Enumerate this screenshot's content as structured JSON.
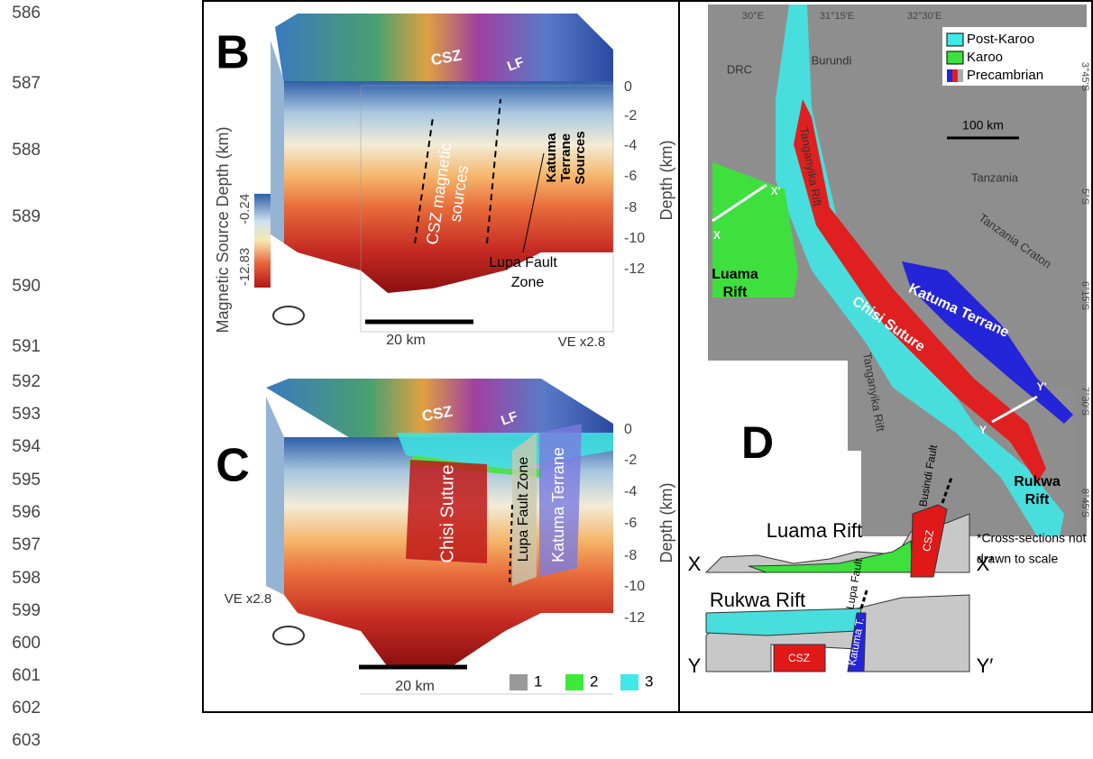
{
  "line_numbers": [
    "586",
    "587",
    "588",
    "589",
    "590",
    "591",
    "592",
    "593",
    "594",
    "595",
    "596",
    "597",
    "598",
    "599",
    "600",
    "601",
    "602",
    "603"
  ],
  "panel_b": {
    "label": "B",
    "top_labels": [
      "CSZ",
      "LF"
    ],
    "csz_sources": [
      "CSZ magnetic",
      "sources"
    ],
    "katuma_sources": [
      "Katuma",
      "Terrane",
      "Sources"
    ],
    "lupa": [
      "Lupa Fault",
      "Zone"
    ],
    "depth_title": "Depth (km)",
    "depth_ticks": [
      "0",
      "-2",
      "-4",
      "-6",
      "-8",
      "-10",
      "-12"
    ],
    "colorbar_title": "Magnetic Source Depth (km)",
    "colorbar_max": "-0.24",
    "colorbar_min": "-12.83",
    "scale_bar": "20 km",
    "ve": "VE x2.8"
  },
  "panel_c": {
    "label": "C",
    "top_labels": [
      "CSZ",
      "LF"
    ],
    "chisi": "Chisi Suture",
    "lupa": "Lupa Fault Zone",
    "katuma": "Katuma Terrane",
    "depth_title": "Depth (km)",
    "depth_ticks": [
      "0",
      "-2",
      "-4",
      "-6",
      "-8",
      "-10",
      "-12"
    ],
    "scale_bar": "20 km",
    "ve": "VE x2.8",
    "legend": [
      "1",
      "2",
      "3"
    ]
  },
  "panel_d": {
    "label": "D",
    "longitudes": [
      "30°E",
      "31°15'E",
      "32°30'E"
    ],
    "latitudes": [
      "3°45'S",
      "5°S",
      "6°15'S",
      "7°30'S",
      "8°45'S"
    ],
    "legend": [
      "Post-Karoo",
      "Karoo",
      "Precambrian"
    ],
    "scale_bar": "100 km",
    "places": [
      "DRC",
      "Burundi",
      "Tanzania",
      "Tanganyika Rift",
      "Tanzania Craton",
      "Chisi Suture",
      "Katuma Terrane",
      "Tanganyika Rift"
    ],
    "luama": [
      "Luama",
      "Rift"
    ],
    "rukwa": [
      "Rukwa",
      "Rift"
    ],
    "profile_ends": [
      "X",
      "X'",
      "Y",
      "Y'"
    ],
    "section_x": {
      "title": "Luama Rift",
      "fault": "Busindi Fault",
      "csz": "CSZ",
      "left": "X",
      "right": "X′"
    },
    "section_y": {
      "title": "Rukwa Rift",
      "fault": "Lupa Fault",
      "csz": "CSZ",
      "katuma": "Katuma T.",
      "left": "Y",
      "right": "Y′"
    },
    "note": [
      "*Cross-sections not",
      "drawn to scale"
    ]
  }
}
